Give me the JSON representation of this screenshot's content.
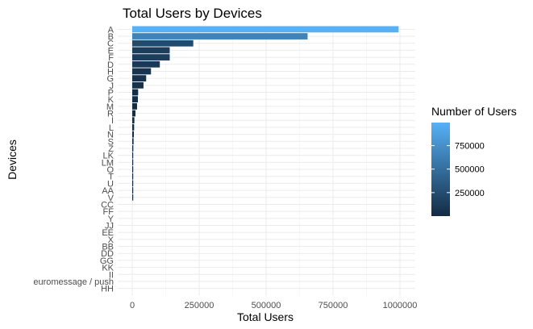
{
  "chart_data": {
    "type": "bar",
    "orientation": "horizontal",
    "title": "Total Users by Devices",
    "xlabel": "Total Users",
    "ylabel": "Devices",
    "xlim": [
      -40000,
      1050000
    ],
    "xticks": [
      0,
      250000,
      500000,
      750000,
      1000000
    ],
    "xtick_labels": [
      "0",
      "250000",
      "500000",
      "750000",
      "1000000"
    ],
    "categories": [
      "A",
      "B",
      "C",
      "E",
      "F",
      "D",
      "H",
      "G",
      "J",
      "P",
      "K",
      "M",
      "R",
      "I",
      "L",
      "N",
      "S",
      "Z",
      "LK",
      "LM",
      "O",
      "T",
      "U",
      "AA",
      "V",
      "CC",
      "FF",
      "Y",
      "JJ",
      "EE",
      "X",
      "BB",
      "DD",
      "GG",
      "KK",
      "II",
      "euromessage / push",
      "HH"
    ],
    "values": [
      995000,
      655000,
      228000,
      140000,
      140000,
      103000,
      70000,
      52000,
      42000,
      22000,
      21000,
      18000,
      12000,
      8000,
      7000,
      6000,
      5000,
      4000,
      3000,
      2500,
      2000,
      1800,
      1500,
      1200,
      1000,
      0,
      0,
      0,
      0,
      0,
      0,
      0,
      0,
      0,
      0,
      0,
      0,
      0
    ],
    "grid": true,
    "color_scale": {
      "title": "Number of Users",
      "low_color": "#132B43",
      "high_color": "#56B1F7",
      "ticks": [
        250000,
        500000,
        750000
      ],
      "tick_labels": [
        "250000",
        "500000",
        "750000"
      ]
    },
    "legend_position": "right"
  }
}
